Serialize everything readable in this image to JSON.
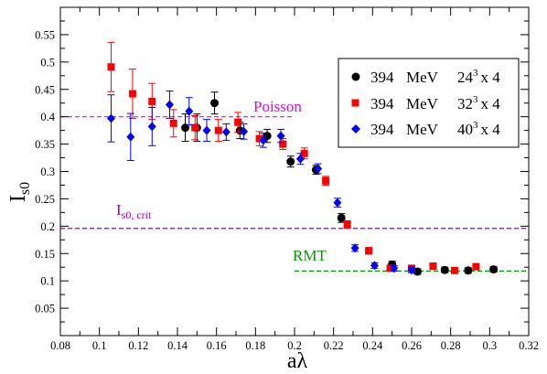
{
  "chart_data": {
    "type": "scatter",
    "title": "",
    "xlabel": "aλ",
    "ylabel_main": "I",
    "ylabel_sub": "s0",
    "xlim": [
      0.08,
      0.32
    ],
    "ylim": [
      0.0,
      0.6
    ],
    "xticks": [
      0.08,
      0.1,
      0.12,
      0.14,
      0.16,
      0.18,
      0.2,
      0.22,
      0.24,
      0.26,
      0.28,
      0.3,
      0.32
    ],
    "xtick_labels": [
      "0.08",
      "0.1",
      "0.12",
      "0.14",
      "0.16",
      "0.18",
      "0.2",
      "0.22",
      "0.24",
      "0.26",
      "0.28",
      "0.3",
      "0.32"
    ],
    "yticks": [
      0.05,
      0.1,
      0.15,
      0.2,
      0.25,
      0.3,
      0.35,
      0.4,
      0.45,
      0.5,
      0.55
    ],
    "ytick_labels": [
      "0.05",
      "0.1",
      "0.15",
      "0.2",
      "0.25",
      "0.3",
      "0.35",
      "0.4",
      "0.45",
      "0.5",
      "0.55"
    ],
    "legend_position": "top-right",
    "series": [
      {
        "legend_parts": [
          "394",
          "MeV",
          "24",
          "3",
          "x 4"
        ],
        "marker": "circle",
        "color": "#000000",
        "points": [
          [
            0.144,
            0.38,
            0.025
          ],
          [
            0.15,
            0.38,
            0.025
          ],
          [
            0.159,
            0.425,
            0.02
          ],
          [
            0.172,
            0.375,
            0.015
          ],
          [
            0.186,
            0.365,
            0.012
          ],
          [
            0.198,
            0.318,
            0.01
          ],
          [
            0.211,
            0.303,
            0.008
          ],
          [
            0.224,
            0.215,
            0.008
          ],
          [
            0.25,
            0.13,
            0.006
          ],
          [
            0.263,
            0.117,
            0.005
          ],
          [
            0.277,
            0.12,
            0.005
          ],
          [
            0.289,
            0.119,
            0.005
          ],
          [
            0.302,
            0.121,
            0.005
          ]
        ]
      },
      {
        "legend_parts": [
          "394",
          "MeV",
          "32",
          "3",
          "x 4"
        ],
        "marker": "square",
        "color": "#ff0000",
        "points": [
          [
            0.106,
            0.491,
            0.045
          ],
          [
            0.117,
            0.442,
            0.045
          ],
          [
            0.127,
            0.428,
            0.033
          ],
          [
            0.138,
            0.388,
            0.025
          ],
          [
            0.149,
            0.38,
            0.022
          ],
          [
            0.161,
            0.375,
            0.02
          ],
          [
            0.171,
            0.39,
            0.018
          ],
          [
            0.182,
            0.36,
            0.013
          ],
          [
            0.194,
            0.35,
            0.01
          ],
          [
            0.205,
            0.333,
            0.01
          ],
          [
            0.216,
            0.283,
            0.008
          ],
          [
            0.227,
            0.203,
            0.007
          ],
          [
            0.238,
            0.155,
            0.006
          ],
          [
            0.249,
            0.123,
            0.005
          ],
          [
            0.26,
            0.123,
            0.005
          ],
          [
            0.271,
            0.127,
            0.005
          ],
          [
            0.282,
            0.119,
            0.005
          ],
          [
            0.293,
            0.126,
            0.005
          ]
        ]
      },
      {
        "legend_parts": [
          "394",
          "MeV",
          "40",
          "3",
          "x 4"
        ],
        "marker": "diamond",
        "color": "#0000ff",
        "points": [
          [
            0.106,
            0.397,
            0.043
          ],
          [
            0.116,
            0.363,
            0.043
          ],
          [
            0.127,
            0.382,
            0.035
          ],
          [
            0.136,
            0.422,
            0.025
          ],
          [
            0.146,
            0.41,
            0.025
          ],
          [
            0.155,
            0.375,
            0.02
          ],
          [
            0.165,
            0.372,
            0.015
          ],
          [
            0.174,
            0.373,
            0.014
          ],
          [
            0.184,
            0.357,
            0.013
          ],
          [
            0.193,
            0.365,
            0.012
          ],
          [
            0.203,
            0.323,
            0.01
          ],
          [
            0.212,
            0.305,
            0.009
          ],
          [
            0.222,
            0.243,
            0.008
          ],
          [
            0.231,
            0.16,
            0.006
          ],
          [
            0.241,
            0.128,
            0.005
          ],
          [
            0.251,
            0.123,
            0.005
          ],
          [
            0.26,
            0.12,
            0.005
          ]
        ]
      }
    ],
    "reference_lines": [
      {
        "label": "Poisson",
        "y": 0.4,
        "x_from": 0.08,
        "x_to": 0.2,
        "color": "#ee00ee"
      },
      {
        "label_main": "I",
        "label_sub": "s0, crit",
        "y": 0.196,
        "x_from": 0.08,
        "x_to": 0.32,
        "color": "#9900cc"
      },
      {
        "label": "RMT",
        "y": 0.118,
        "x_from": 0.2,
        "x_to": 0.32,
        "color": "#009900"
      }
    ]
  }
}
